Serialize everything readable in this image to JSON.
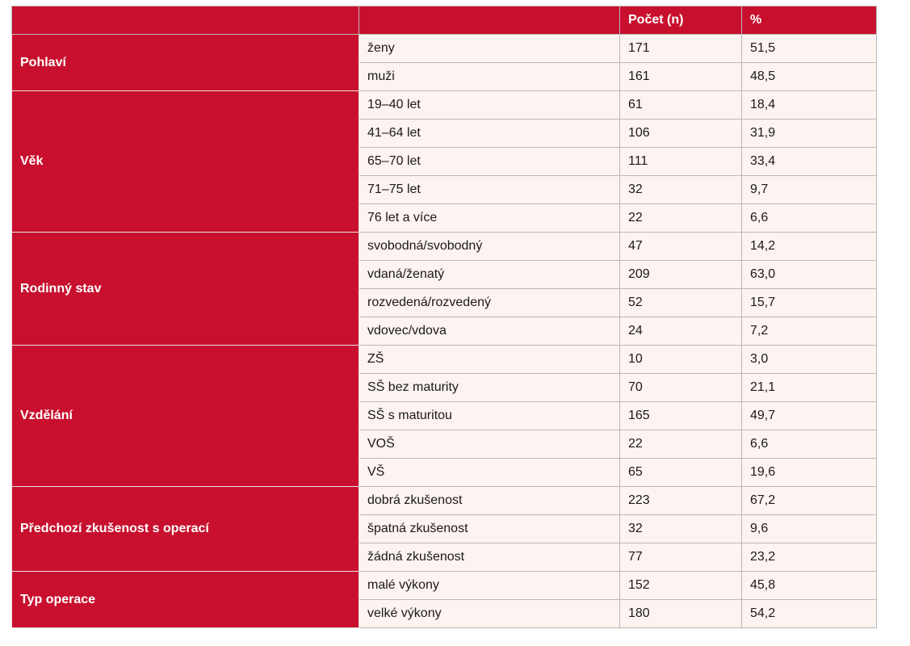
{
  "table": {
    "header": [
      "",
      "",
      "Počet (n)",
      "%"
    ],
    "groups": [
      {
        "label": "Pohlaví",
        "rows": [
          {
            "category": "ženy",
            "count": "171",
            "percent": "51,5"
          },
          {
            "category": "muži",
            "count": "161",
            "percent": "48,5"
          }
        ]
      },
      {
        "label": "Věk",
        "rows": [
          {
            "category": "19–40 let",
            "count": "61",
            "percent": "18,4"
          },
          {
            "category": "41–64 let",
            "count": "106",
            "percent": "31,9"
          },
          {
            "category": "65–70 let",
            "count": "111",
            "percent": "33,4"
          },
          {
            "category": "71–75 let",
            "count": "32",
            "percent": "9,7"
          },
          {
            "category": "76 let a více",
            "count": "22",
            "percent": "6,6"
          }
        ]
      },
      {
        "label": "Rodinný stav",
        "rows": [
          {
            "category": "svobodná/svobodný",
            "count": "47",
            "percent": "14,2"
          },
          {
            "category": "vdaná/ženatý",
            "count": "209",
            "percent": "63,0"
          },
          {
            "category": "rozvedená/rozvedený",
            "count": "52",
            "percent": "15,7"
          },
          {
            "category": "vdovec/vdova",
            "count": "24",
            "percent": "7,2"
          }
        ]
      },
      {
        "label": "Vzdělání",
        "rows": [
          {
            "category": "ZŠ",
            "count": "10",
            "percent": "3,0"
          },
          {
            "category": "SŠ bez maturity",
            "count": "70",
            "percent": "21,1"
          },
          {
            "category": "SŠ s maturitou",
            "count": "165",
            "percent": "49,7"
          },
          {
            "category": "VOŠ",
            "count": "22",
            "percent": "6,6"
          },
          {
            "category": "VŠ",
            "count": "65",
            "percent": "19,6"
          }
        ]
      },
      {
        "label": "Předchozí zkušenost s operací",
        "rows": [
          {
            "category": "dobrá zkušenost",
            "count": "223",
            "percent": "67,2"
          },
          {
            "category": "špatná zkušenost",
            "count": "32",
            "percent": "9,6"
          },
          {
            "category": "žádná zkušenost",
            "count": "77",
            "percent": "23,2"
          }
        ]
      },
      {
        "label": "Typ operace",
        "rows": [
          {
            "category": "malé výkony",
            "count": "152",
            "percent": "45,8"
          },
          {
            "category": "velké výkony",
            "count": "180",
            "percent": "54,2"
          }
        ]
      }
    ]
  }
}
